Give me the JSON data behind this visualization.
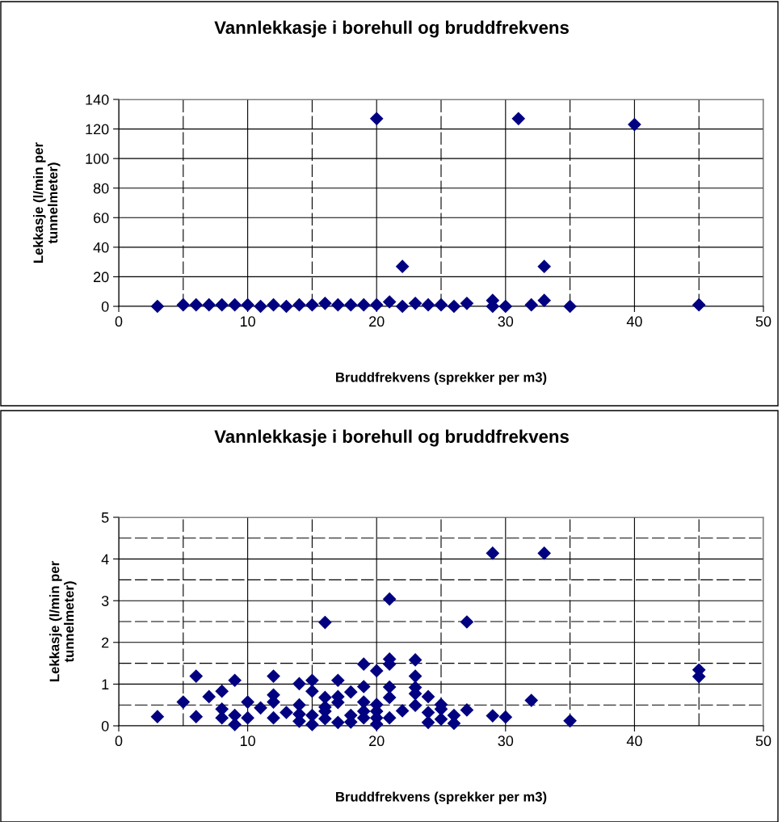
{
  "chart_data": [
    {
      "type": "scatter",
      "title": "Vannlekkasje i borehull og bruddfrekvens",
      "xlabel": "Bruddfrekvens (sprekker per m3)",
      "ylabel": "Lekkasje (l/min per tunnelmeter)",
      "marker": "diamond",
      "grid": true,
      "xlim": [
        0,
        50
      ],
      "xticks": [
        0,
        10,
        20,
        30,
        40,
        50
      ],
      "ylim": [
        0,
        140
      ],
      "yticks": [
        0,
        20,
        40,
        60,
        80,
        100,
        120,
        140
      ],
      "series": [
        {
          "color": "#000080",
          "x": [
            3,
            5,
            6,
            7,
            8,
            9,
            10,
            11,
            12,
            13,
            14,
            15,
            16,
            17,
            18,
            19,
            20,
            21,
            22,
            23,
            24,
            25,
            26,
            27,
            29,
            29,
            30,
            32,
            33,
            35,
            45,
            20,
            31,
            40,
            22,
            33
          ],
          "values": [
            0,
            1,
            1,
            1,
            1,
            1,
            1,
            0,
            1,
            0,
            1,
            1,
            2,
            1,
            1,
            1,
            1,
            3,
            0,
            2,
            1,
            1,
            0,
            2,
            4,
            0,
            0,
            1,
            4,
            0,
            1,
            127,
            127,
            123,
            27,
            27
          ]
        }
      ]
    },
    {
      "type": "scatter",
      "title": "Vannlekkasje i borehull og bruddfrekvens",
      "xlabel": "Bruddfrekvens (sprekker per m3)",
      "ylabel": "Lekkasje (l/min per tunnelmeter)",
      "marker": "diamond",
      "grid": true,
      "xlim": [
        0,
        50
      ],
      "xticks": [
        0,
        10,
        20,
        30,
        40,
        50
      ],
      "ylim": [
        0,
        5
      ],
      "yticks": [
        0,
        1,
        2,
        3,
        4,
        5
      ],
      "series": [
        {
          "color": "#000080",
          "x": [
            3,
            5,
            6,
            6,
            7,
            8,
            8,
            8,
            9,
            9,
            9,
            10,
            10,
            11,
            12,
            12,
            12,
            12,
            13,
            14,
            14,
            14,
            14,
            15,
            15,
            15,
            15,
            16,
            16,
            16,
            16,
            16,
            17,
            17,
            17,
            17,
            18,
            18,
            18,
            19,
            19,
            19,
            19,
            19,
            20,
            20,
            20,
            20,
            20,
            21,
            21,
            21,
            21,
            21,
            21,
            22,
            23,
            23,
            23,
            23,
            23,
            24,
            24,
            24,
            25,
            25,
            25,
            26,
            26,
            27,
            27,
            29,
            29,
            30,
            32,
            33,
            35,
            45,
            45
          ],
          "values": [
            0.22,
            0.57,
            1.19,
            0.22,
            0.7,
            0.83,
            0.4,
            0.19,
            1.09,
            0.25,
            0.03,
            0.57,
            0.19,
            0.43,
            1.19,
            0.74,
            0.57,
            0.19,
            0.32,
            1.01,
            0.5,
            0.28,
            0.11,
            1.09,
            0.83,
            0.25,
            0.03,
            2.48,
            0.68,
            0.45,
            0.35,
            0.17,
            1.09,
            0.7,
            0.56,
            0.08,
            0.81,
            0.25,
            0.09,
            1.48,
            0.94,
            0.57,
            0.35,
            0.19,
            1.32,
            0.51,
            0.35,
            0.19,
            0.04,
            3.04,
            1.6,
            1.48,
            0.93,
            0.68,
            0.19,
            0.36,
            1.58,
            1.19,
            0.92,
            0.77,
            0.49,
            0.7,
            0.32,
            0.08,
            0.51,
            0.4,
            0.16,
            0.25,
            0.06,
            2.49,
            0.38,
            4.14,
            0.24,
            0.21,
            0.61,
            4.14,
            0.12,
            1.34,
            1.18
          ]
        }
      ]
    }
  ]
}
